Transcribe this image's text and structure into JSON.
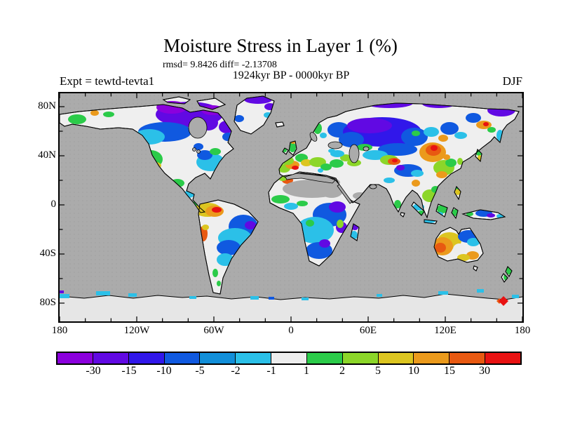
{
  "figure": {
    "title": "Moisture Stress in Layer 1 (%)",
    "stats_line": "rmsd= 9.8426 diff= -2.13708",
    "period_line": "1924kyr BP - 0000kyr BP",
    "experiment_label": "Expt = tewtd-tevta1",
    "season_label": "DJF"
  },
  "map": {
    "ocean_color": "#ABABAB",
    "land_neutral_color": "#EFEFEF",
    "ice_color": "#E6E6E6",
    "lat_labels": [
      "80N",
      "40N",
      "0",
      "40S",
      "80S"
    ],
    "lon_labels": [
      "180",
      "120W",
      "60W",
      "0",
      "60E",
      "120E",
      "180"
    ]
  },
  "colorbar": {
    "tick_labels": [
      "-30",
      "-15",
      "-10",
      "-5",
      "-2",
      "-1",
      "1",
      "2",
      "5",
      "10",
      "15",
      "30"
    ],
    "colors": [
      "#8B00DD",
      "#6109E3",
      "#3117EA",
      "#1059E0",
      "#128FD9",
      "#2BC0E8",
      "#EDEDED",
      "#2BCB49",
      "#8CD629",
      "#DCC520",
      "#EB9A1C",
      "#E85911",
      "#E81212"
    ]
  },
  "chart_data": {
    "type": "heatmap",
    "title": "Moisture Stress in Layer 1 (%)",
    "subtitle": "1924kyr BP - 0000kyr BP",
    "season": "DJF",
    "experiment": "tewtd-tevta1",
    "rmsd": 9.8426,
    "diff": -2.13708,
    "units": "%",
    "projection": "equirectangular world map, land-only filled contours, oceans/deserts masked gray",
    "contour_levels": [
      -30,
      -15,
      -10,
      -5,
      -2,
      -1,
      1,
      2,
      5,
      10,
      15,
      30
    ],
    "palette": [
      "#8B00DD",
      "#6109E3",
      "#3117EA",
      "#1059E0",
      "#128FD9",
      "#2BC0E8",
      "#EDEDED",
      "#2BCB49",
      "#8CD629",
      "#DCC520",
      "#EB9A1C",
      "#E85911",
      "#E81212"
    ],
    "x_axis": {
      "tick_labels": [
        "180",
        "120W",
        "60W",
        "0",
        "60E",
        "120E",
        "180"
      ],
      "range_deg": [
        -180,
        180
      ]
    },
    "y_axis": {
      "tick_labels": [
        "80N",
        "40N",
        "0",
        "40S",
        "80S"
      ],
      "range_deg": [
        -90,
        90
      ]
    },
    "regional_anomalies": [
      {
        "region": "Canadian Arctic / northern Canada",
        "value_range": "-30 to -15"
      },
      {
        "region": "Central Canada",
        "value_range": "-10 to -5"
      },
      {
        "region": "Eastern US",
        "value_range": "-5 to -1"
      },
      {
        "region": "Western US / Rockies",
        "value_range": "2 to 10"
      },
      {
        "region": "Alaska",
        "value_range": "1 to 10"
      },
      {
        "region": "Greenland margins",
        "value_range": "-30 to -5"
      },
      {
        "region": "Northern Amazon",
        "value_range": "10 to 30"
      },
      {
        "region": "Eastern Brazil",
        "value_range": "-15 to -5"
      },
      {
        "region": "Peru coast",
        "value_range": "10 to 30"
      },
      {
        "region": "Western Europe / Iberia / UK",
        "value_range": "2 to 15"
      },
      {
        "region": "Sahara and Arabian desert",
        "value_range": "masked gray (no data)"
      },
      {
        "region": "Central and East Africa",
        "value_range": "-15 to -2"
      },
      {
        "region": "Western Siberia",
        "value_range": "-30 to -10"
      },
      {
        "region": "Mongolia / Northeast China",
        "value_range": "10 to 30"
      },
      {
        "region": "Tibet",
        "value_range": "-10 to -5"
      },
      {
        "region": "Southeast Asia islands",
        "value_range": "-2 to 2"
      },
      {
        "region": "Western Australia",
        "value_range": "10 to 30"
      },
      {
        "region": "Northeastern Australia",
        "value_range": "-10 to -2"
      },
      {
        "region": "Southeastern Australia",
        "value_range": "5 to 15"
      },
      {
        "region": "New Zealand",
        "value_range": "1 to 5"
      },
      {
        "region": "Antarctica coast spot near 160E",
        "value_range": "15 to 30"
      }
    ]
  }
}
